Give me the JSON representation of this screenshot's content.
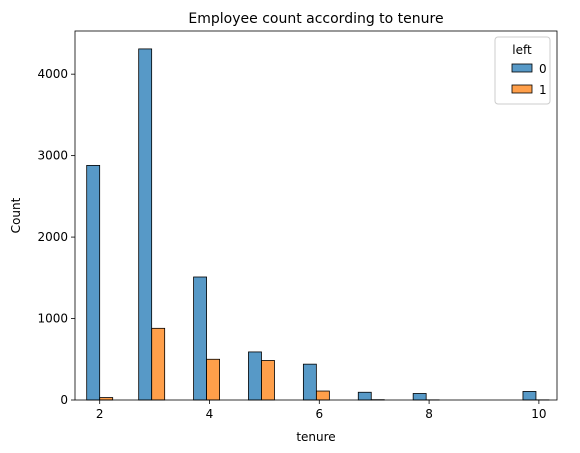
{
  "chart_data": {
    "type": "bar",
    "title": "Employee count according to tenure",
    "xlabel": "tenure",
    "ylabel": "Count",
    "x_ticks": [
      2,
      4,
      6,
      8,
      10
    ],
    "y_ticks": [
      0,
      1000,
      2000,
      3000,
      4000
    ],
    "xlim": [
      1.55,
      10.33
    ],
    "ylim": [
      0,
      4530
    ],
    "bar_width": 0.2367,
    "legend": {
      "title": "left",
      "placement": "top-right"
    },
    "series": [
      {
        "name": "0",
        "color": "#1f77b4",
        "bins": [
          {
            "x0": 1.763,
            "value": 2880
          },
          {
            "x0": 2.71,
            "value": 4310
          },
          {
            "x0": 3.71,
            "value": 1510
          },
          {
            "x0": 4.71,
            "value": 590
          },
          {
            "x0": 5.71,
            "value": 440
          },
          {
            "x0": 6.71,
            "value": 95
          },
          {
            "x0": 7.71,
            "value": 80
          },
          {
            "x0": 9.71,
            "value": 105
          }
        ]
      },
      {
        "name": "1",
        "color": "#ff7f0e",
        "bins": [
          {
            "x0": 2.0,
            "value": 30
          },
          {
            "x0": 2.947,
            "value": 880
          },
          {
            "x0": 3.947,
            "value": 500
          },
          {
            "x0": 4.947,
            "value": 485
          },
          {
            "x0": 5.947,
            "value": 110
          },
          {
            "x0": 6.947,
            "value": 4
          },
          {
            "x0": 7.947,
            "value": 2
          },
          {
            "x0": 9.947,
            "value": 2
          }
        ]
      }
    ]
  }
}
